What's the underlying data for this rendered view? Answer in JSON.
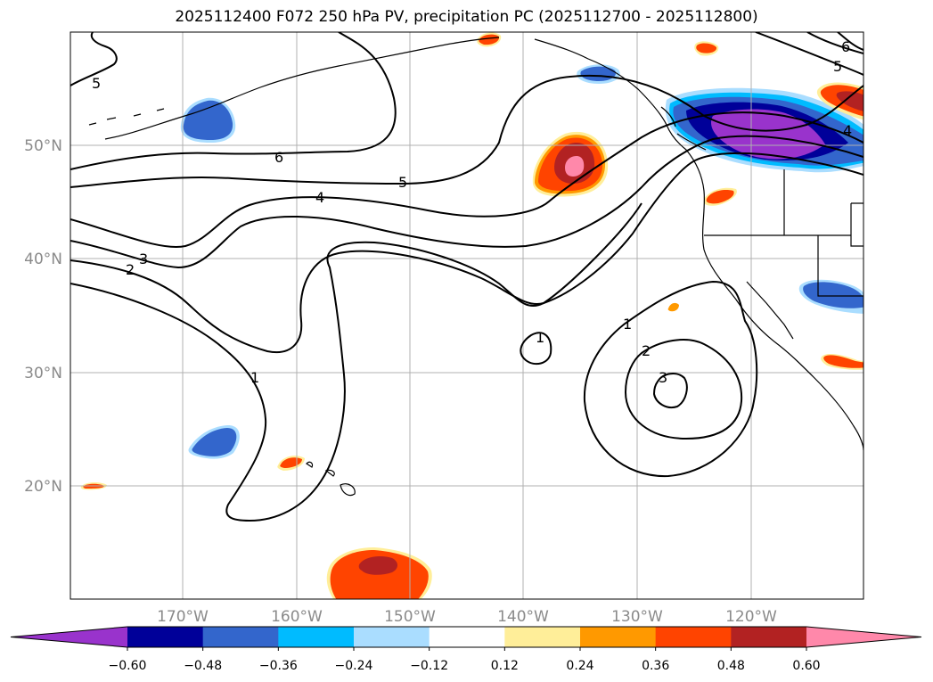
{
  "title": "2025112400 F072 250 hPa PV, precipitation PC (2025112700 - 2025112800)",
  "map": {
    "lon_labels": [
      "170°W",
      "160°W",
      "150°W",
      "140°W",
      "130°W",
      "120°W"
    ],
    "lat_labels": [
      "50°N",
      "40°N",
      "30°N",
      "20°N"
    ],
    "contour_labels": [
      {
        "text": "5"
      },
      {
        "text": "6"
      },
      {
        "text": "5"
      },
      {
        "text": "4"
      },
      {
        "text": "3"
      },
      {
        "text": "2"
      },
      {
        "text": "1"
      },
      {
        "text": "1"
      },
      {
        "text": "1"
      },
      {
        "text": "2"
      },
      {
        "text": "3"
      },
      {
        "text": "5"
      },
      {
        "text": "6"
      },
      {
        "text": "4"
      }
    ]
  },
  "colorbar": {
    "tick_labels": [
      "−0.60",
      "−0.48",
      "−0.36",
      "−0.24",
      "−0.12",
      "0.12",
      "0.24",
      "0.36",
      "0.48",
      "0.60"
    ],
    "colors": [
      "#9933cc",
      "#000099",
      "#3366cc",
      "#00bbff",
      "#aaddff",
      "#ffffff",
      "#ffee99",
      "#ff9900",
      "#ff4400",
      "#b22222",
      "#ff88aa"
    ]
  }
}
